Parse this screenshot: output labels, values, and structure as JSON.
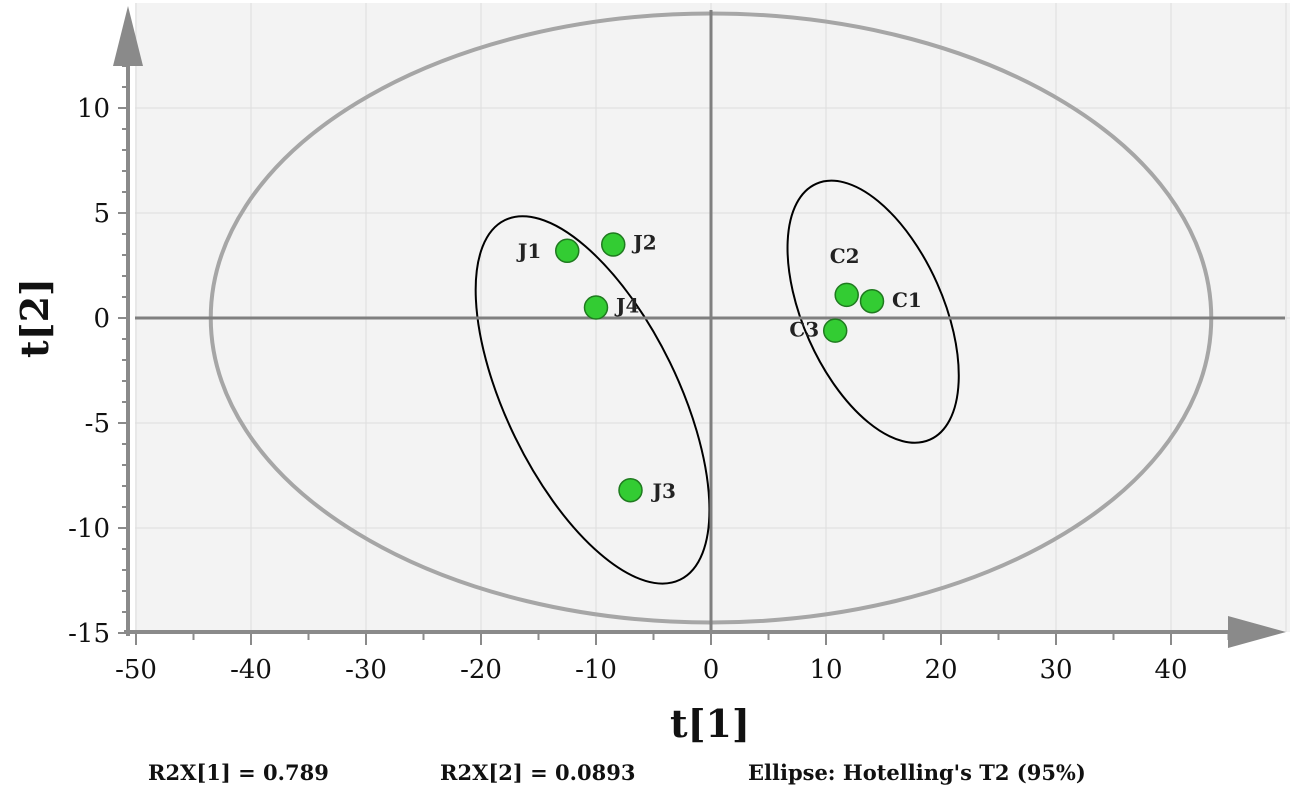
{
  "chart_data": {
    "type": "scatter",
    "xlabel": "t[1]",
    "ylabel": "t[2]",
    "xlim": [
      -50,
      50
    ],
    "ylim": [
      -15,
      15
    ],
    "x_ticks": [
      -50,
      -40,
      -30,
      -20,
      -10,
      0,
      10,
      20,
      30,
      40
    ],
    "y_ticks": [
      -15,
      -10,
      -5,
      0,
      5,
      10
    ],
    "grid": true,
    "point_color": "#33cc33",
    "points": [
      {
        "label": "J1",
        "x": -12.5,
        "y": 3.2
      },
      {
        "label": "J2",
        "x": -8.5,
        "y": 3.5
      },
      {
        "label": "J4",
        "x": -10.0,
        "y": 0.5
      },
      {
        "label": "J3",
        "x": -7.0,
        "y": -8.2
      },
      {
        "label": "C2",
        "x": 11.8,
        "y": 1.1
      },
      {
        "label": "C1",
        "x": 14.0,
        "y": 0.8
      },
      {
        "label": "C3",
        "x": 10.8,
        "y": -0.6
      }
    ]
  },
  "footer": {
    "r2x1": "R2X[1] = 0.789",
    "r2x2": "R2X[2] = 0.0893",
    "ellipse": "Ellipse: Hotelling's T2 (95%)"
  }
}
